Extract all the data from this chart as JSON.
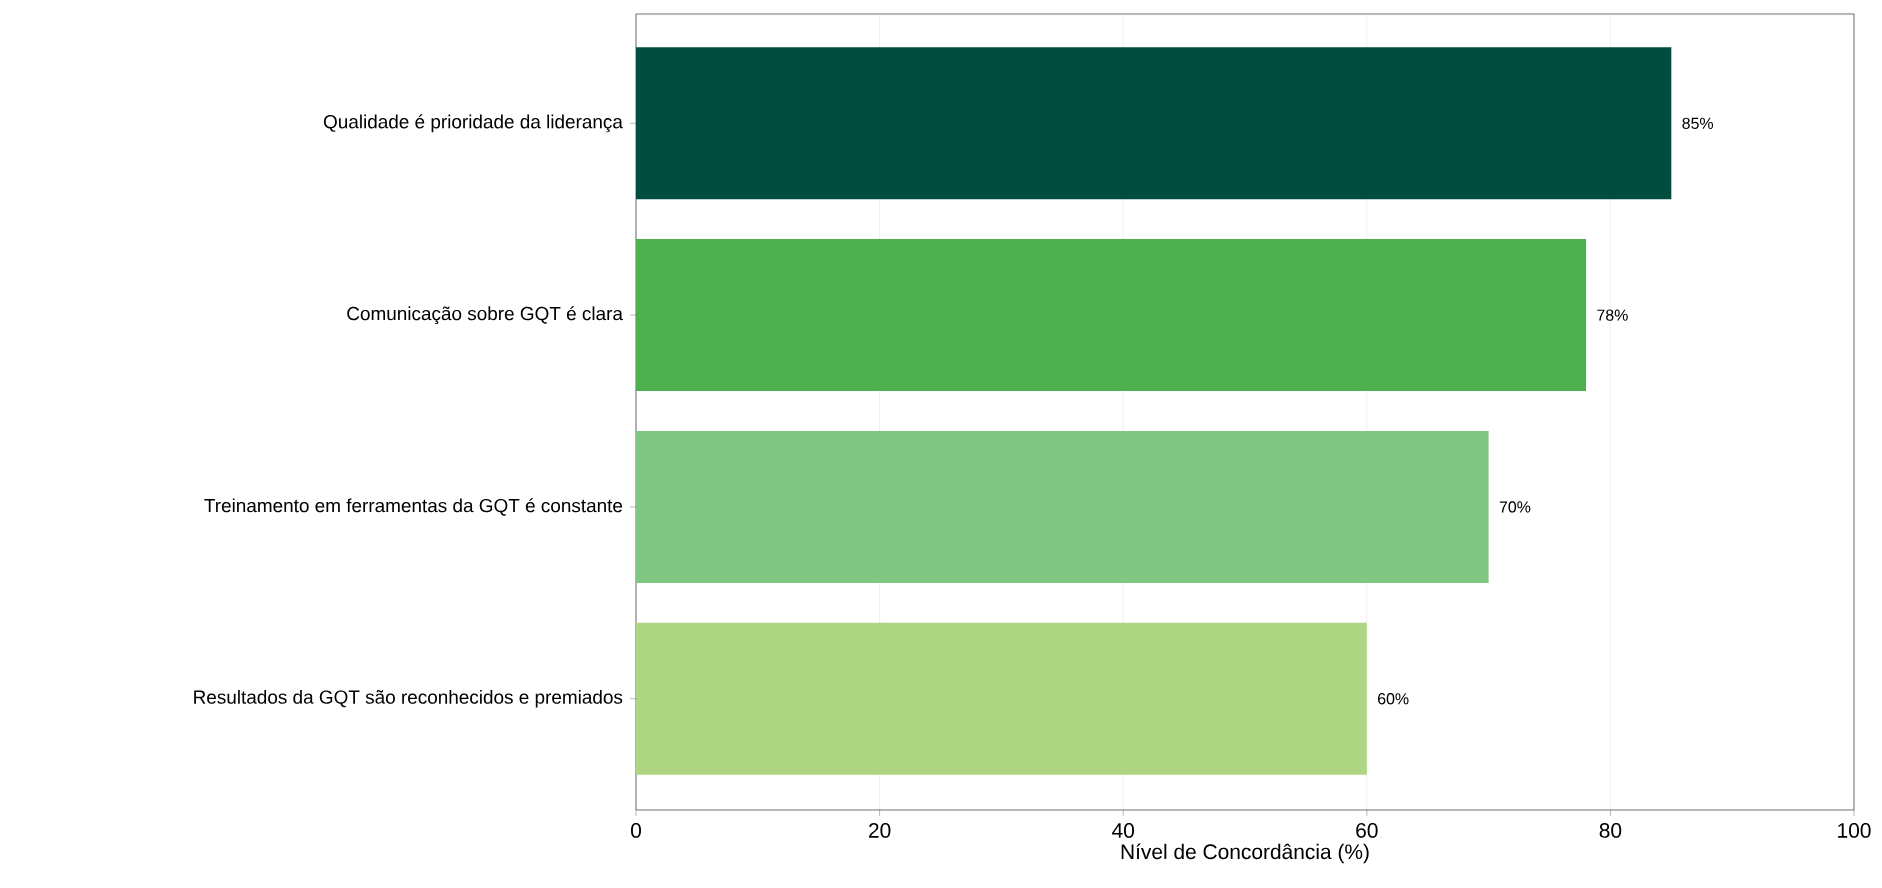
{
  "chart_data": {
    "type": "bar",
    "orientation": "horizontal",
    "xlabel": "Nível de Concordância (%)",
    "categories": [
      "Qualidade é prioridade da liderança",
      "Comunicação sobre GQT é clara",
      "Treinamento em ferramentas da GQT é constante",
      "Resultados da GQT são reconhecidos e premiados"
    ],
    "values": [
      85,
      78,
      70,
      60
    ],
    "colors": [
      "#004d40",
      "#4caf50",
      "#81c784",
      "#aed581"
    ],
    "value_labels": [
      "85%",
      "78%",
      "70%",
      "60%"
    ],
    "xlim": [
      0,
      100
    ],
    "xticks": [
      0,
      20,
      40,
      60,
      80,
      100
    ],
    "grid": "x"
  }
}
